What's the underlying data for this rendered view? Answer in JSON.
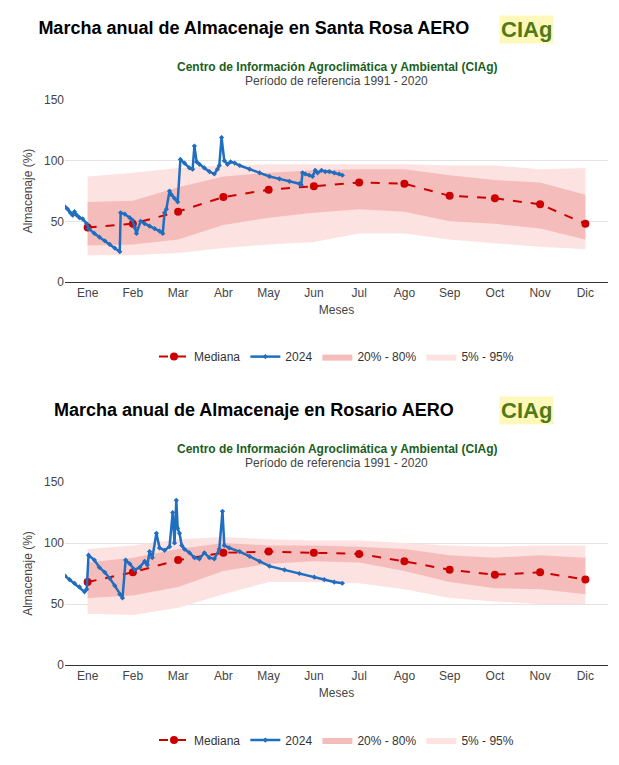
{
  "chart_data": [
    {
      "type": "line",
      "title": "Marcha anual de Almacenaje en Santa Rosa AERO",
      "subtitle": [
        "Centro de Información Agroclimática y Ambiental (CIAg)",
        "Período de referencia 1991 - 2020"
      ],
      "annotations": [
        "CIAg"
      ],
      "x_label": "Meses",
      "y_label": "Almacenaje (%)",
      "x": [
        0,
        1,
        2,
        3,
        4,
        5,
        6,
        7,
        8,
        9,
        10,
        11
      ],
      "xlim": [
        -0.5,
        11.5
      ],
      "xticks": [
        {
          "value": 0,
          "label": "Ene"
        },
        {
          "value": 1,
          "label": "Feb"
        },
        {
          "value": 2,
          "label": "Mar"
        },
        {
          "value": 3,
          "label": "Abr"
        },
        {
          "value": 4,
          "label": "May"
        },
        {
          "value": 5,
          "label": "Jun"
        },
        {
          "value": 6,
          "label": "Jul"
        },
        {
          "value": 7,
          "label": "Ago"
        },
        {
          "value": 8,
          "label": "Sep"
        },
        {
          "value": 9,
          "label": "Oct"
        },
        {
          "value": 10,
          "label": "Nov"
        },
        {
          "value": 11,
          "label": "Dic"
        }
      ],
      "ylim": [
        0,
        150
      ],
      "yticks": [
        0,
        50,
        100,
        150
      ],
      "grid": true,
      "legend": "bottom",
      "series": [
        {
          "name": "Mediana",
          "type": "line",
          "color": "#cc0000",
          "line_style": "dashed",
          "marker": "circle",
          "values": [
            45,
            48,
            58,
            70,
            76,
            79,
            82,
            81,
            71,
            69,
            64,
            48
          ]
        },
        {
          "name": "2024",
          "type": "line",
          "color": "#1f6ebf",
          "line_style": "solid",
          "marker": "diamond",
          "x": [
            -0.5,
            -0.44,
            -0.38,
            -0.33,
            -0.29,
            -0.24,
            -0.18,
            -0.11,
            -0.02,
            0.02,
            0.15,
            0.26,
            0.38,
            0.49,
            0.6,
            0.71,
            0.73,
            0.82,
            0.93,
            0.99,
            1.04,
            1.08,
            1.17,
            1.26,
            1.37,
            1.48,
            1.59,
            1.66,
            1.7,
            1.74,
            1.81,
            1.85,
            1.92,
            1.99,
            2.05,
            2.14,
            2.25,
            2.32,
            2.36,
            2.41,
            2.47,
            2.58,
            2.69,
            2.8,
            2.87,
            2.91,
            2.96,
            3.02,
            3.09,
            3.16,
            3.25,
            3.36,
            3.58,
            3.8,
            4.02,
            4.24,
            4.46,
            4.68,
            4.72,
            4.75,
            4.81,
            4.9,
            4.97,
            5.03,
            5.08,
            5.17,
            5.25,
            5.34,
            5.45,
            5.56,
            5.63
          ],
          "values": [
            62,
            60,
            57,
            55,
            58,
            55,
            53,
            52,
            48,
            44,
            40,
            37,
            34,
            31,
            28,
            25,
            57,
            56,
            53,
            51,
            45,
            40,
            50,
            48,
            46,
            44,
            42,
            40,
            57,
            60,
            75,
            72,
            69,
            66,
            101,
            98,
            94,
            93,
            112,
            99,
            97,
            94,
            91,
            89,
            93,
            96,
            119,
            100,
            97,
            99,
            98,
            96,
            93,
            90,
            87,
            85,
            83,
            81,
            80,
            90,
            89,
            88,
            87,
            92,
            90,
            92,
            91,
            91,
            90,
            89,
            88
          ]
        },
        {
          "name": "20% - 80%",
          "type": "band",
          "color": "#f5bcbc",
          "lower": [
            30,
            31,
            35,
            47,
            53,
            57,
            60,
            58,
            50,
            48,
            44,
            35
          ],
          "upper": [
            66,
            67,
            78,
            87,
            90,
            92,
            93,
            93,
            88,
            84,
            82,
            72
          ]
        },
        {
          "name": "5% - 95%",
          "type": "band",
          "color": "#fde2e2",
          "lower": [
            22,
            22,
            24,
            28,
            31,
            33,
            40,
            40,
            35,
            32,
            29,
            27
          ],
          "upper": [
            87,
            90,
            94,
            96,
            97,
            97,
            97,
            97,
            96,
            96,
            93,
            94
          ]
        }
      ]
    },
    {
      "type": "line",
      "title": "Marcha anual de Almacenaje en Rosario AERO",
      "subtitle": [
        "Centro de Información Agroclimática y Ambiental (CIAg)",
        "Período de referencia 1991 - 2020"
      ],
      "annotations": [
        "CIAg"
      ],
      "x_label": "Meses",
      "y_label": "Almacenaje (%)",
      "x": [
        0,
        1,
        2,
        3,
        4,
        5,
        6,
        7,
        8,
        9,
        10,
        11
      ],
      "xlim": [
        -0.5,
        11.5
      ],
      "xticks": [
        {
          "value": 0,
          "label": "Ene"
        },
        {
          "value": 1,
          "label": "Feb"
        },
        {
          "value": 2,
          "label": "Mar"
        },
        {
          "value": 3,
          "label": "Abr"
        },
        {
          "value": 4,
          "label": "May"
        },
        {
          "value": 5,
          "label": "Jun"
        },
        {
          "value": 6,
          "label": "Jul"
        },
        {
          "value": 7,
          "label": "Ago"
        },
        {
          "value": 8,
          "label": "Sep"
        },
        {
          "value": 9,
          "label": "Oct"
        },
        {
          "value": 10,
          "label": "Nov"
        },
        {
          "value": 11,
          "label": "Dic"
        }
      ],
      "ylim": [
        0,
        150
      ],
      "yticks": [
        0,
        50,
        100,
        150
      ],
      "grid": true,
      "legend": "bottom",
      "series": [
        {
          "name": "Mediana",
          "type": "line",
          "color": "#cc0000",
          "line_style": "dashed",
          "marker": "circle",
          "values": [
            68,
            76,
            86,
            92,
            93,
            92,
            91,
            85,
            78,
            74,
            76,
            70
          ]
        },
        {
          "name": "2024",
          "type": "line",
          "color": "#1f6ebf",
          "line_style": "solid",
          "marker": "diamond",
          "x": [
            -0.5,
            -0.4,
            -0.29,
            -0.18,
            -0.07,
            -0.02,
            0.02,
            0.15,
            0.26,
            0.38,
            0.49,
            0.6,
            0.71,
            0.77,
            0.84,
            0.93,
            1.04,
            1.15,
            1.26,
            1.32,
            1.37,
            1.43,
            1.52,
            1.59,
            1.7,
            1.81,
            1.88,
            1.92,
            1.96,
            1.99,
            2.03,
            2.08,
            2.14,
            2.25,
            2.36,
            2.47,
            2.58,
            2.69,
            2.8,
            2.91,
            2.98,
            3.02,
            3.13,
            3.36,
            3.58,
            3.8,
            4.02,
            4.35,
            4.68,
            5.01,
            5.23,
            5.45,
            5.63
          ],
          "values": [
            73,
            70,
            67,
            64,
            60,
            62,
            90,
            86,
            80,
            76,
            71,
            65,
            58,
            55,
            86,
            83,
            78,
            80,
            85,
            82,
            93,
            88,
            108,
            96,
            94,
            97,
            125,
            100,
            135,
            112,
            108,
            98,
            95,
            92,
            88,
            87,
            92,
            88,
            87,
            95,
            126,
            98,
            96,
            93,
            89,
            85,
            81,
            78,
            75,
            72,
            70,
            68,
            67
          ]
        },
        {
          "name": "20% - 80%",
          "type": "band",
          "color": "#f5bcbc",
          "lower": [
            55,
            57,
            64,
            77,
            83,
            85,
            84,
            77,
            68,
            63,
            62,
            58
          ],
          "upper": [
            84,
            88,
            95,
            100,
            98,
            98,
            97,
            95,
            90,
            88,
            90,
            88
          ]
        },
        {
          "name": "5% - 95%",
          "type": "band",
          "color": "#fde2e2",
          "lower": [
            42,
            41,
            47,
            58,
            68,
            68,
            67,
            62,
            55,
            52,
            50,
            50
          ],
          "upper": [
            95,
            98,
            103,
            105,
            103,
            102,
            102,
            100,
            98,
            97,
            98,
            98
          ]
        }
      ]
    }
  ]
}
